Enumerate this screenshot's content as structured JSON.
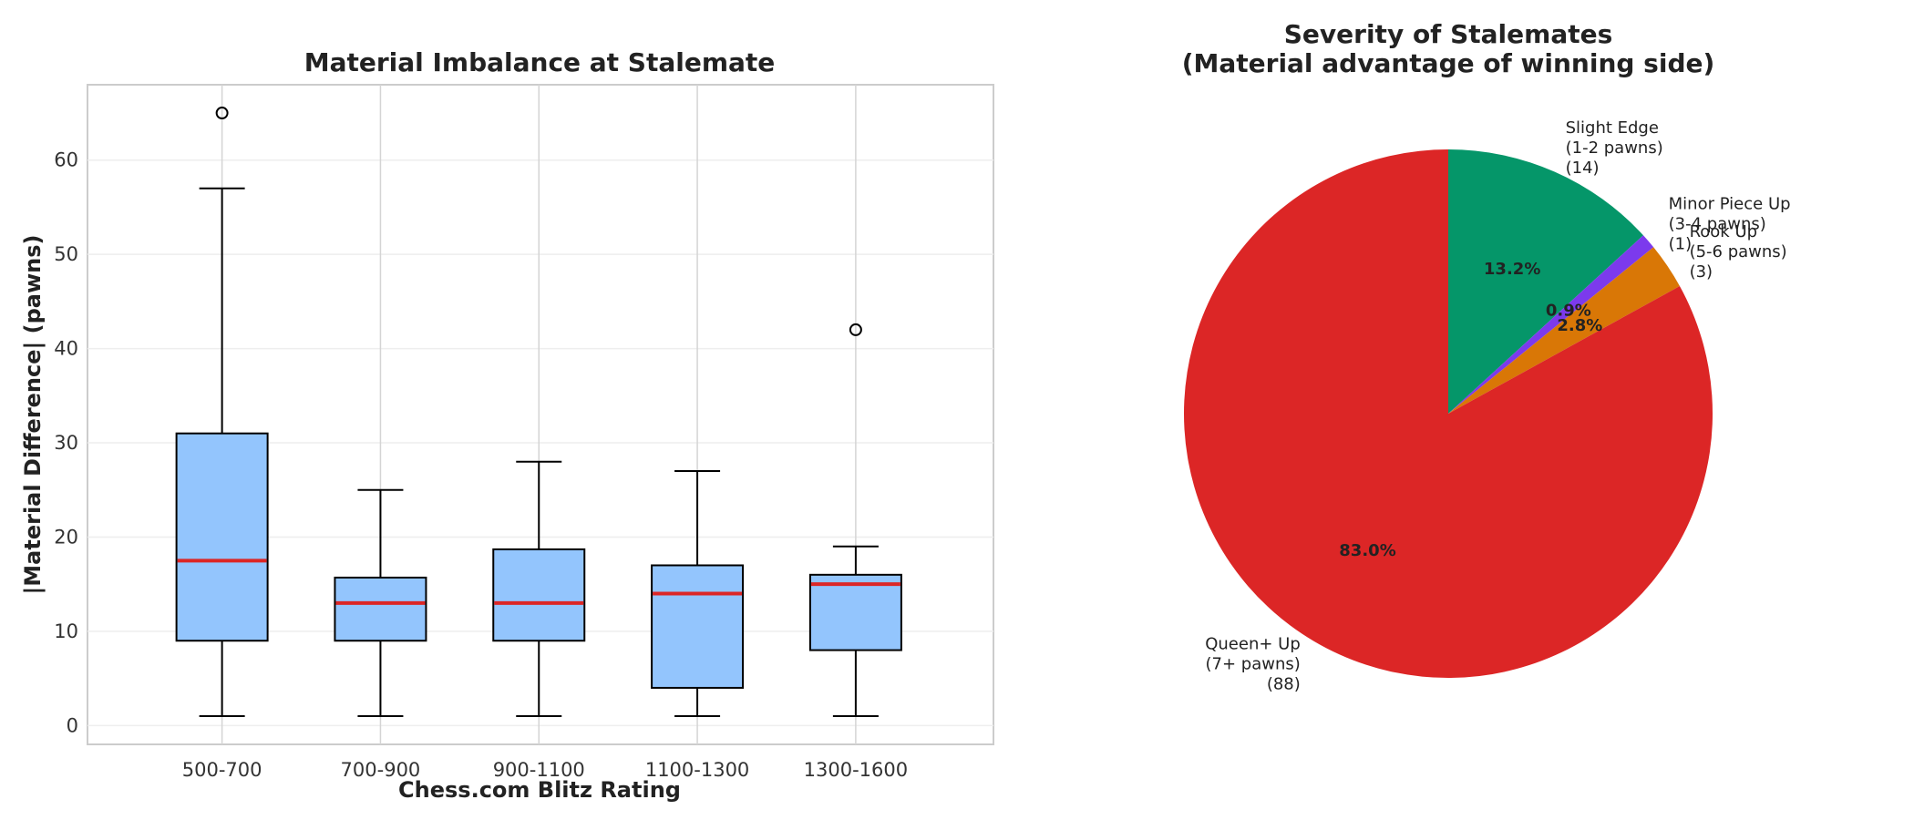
{
  "chart_data": [
    {
      "type": "box",
      "title": "Material Imbalance at Stalemate",
      "xlabel": "Chess.com Blitz Rating",
      "ylabel": "|Material Difference| (pawns)",
      "ylim": [
        -2,
        68
      ],
      "yticks": [
        0,
        10,
        20,
        30,
        40,
        50,
        60
      ],
      "grid": true,
      "colors": {
        "box_fill": "#93c5fd",
        "median": "#dc2626",
        "whisker": "#000000"
      },
      "categories": [
        "500-700",
        "700-900",
        "900-1100",
        "1100-1300",
        "1300-1600"
      ],
      "boxes": [
        {
          "whisker_low": 1,
          "q1": 9,
          "median": 17.5,
          "q3": 31,
          "whisker_high": 57,
          "outliers": [
            65
          ]
        },
        {
          "whisker_low": 1,
          "q1": 9,
          "median": 13,
          "q3": 15.7,
          "whisker_high": 25,
          "outliers": []
        },
        {
          "whisker_low": 1,
          "q1": 9,
          "median": 13,
          "q3": 18.7,
          "whisker_high": 28,
          "outliers": []
        },
        {
          "whisker_low": 1,
          "q1": 4,
          "median": 14,
          "q3": 17,
          "whisker_high": 27,
          "outliers": []
        },
        {
          "whisker_low": 1,
          "q1": 8,
          "median": 15,
          "q3": 16,
          "whisker_high": 19,
          "outliers": [
            42
          ]
        }
      ]
    },
    {
      "type": "pie",
      "title": "Severity of Stalemates",
      "subtitle": "(Material advantage of winning side)",
      "start_angle_deg": 90,
      "direction": "clockwise",
      "slices": [
        {
          "label_lines": [
            "Slight Edge",
            "(1-2 pawns)",
            "(14)"
          ],
          "value": 14,
          "pct": "13.2%",
          "color": "#059669"
        },
        {
          "label_lines": [
            "Minor Piece Up",
            "(3-4 pawns)",
            "(1)"
          ],
          "value": 1,
          "pct": "0.9%",
          "color": "#7c3aed"
        },
        {
          "label_lines": [
            "Rook Up",
            "(5-6 pawns)",
            "(3)"
          ],
          "value": 3,
          "pct": "2.8%",
          "color": "#d97706"
        },
        {
          "label_lines": [
            "Queen+ Up",
            "(7+ pawns)",
            "(88)"
          ],
          "value": 88,
          "pct": "83.0%",
          "color": "#dc2626"
        }
      ]
    }
  ]
}
